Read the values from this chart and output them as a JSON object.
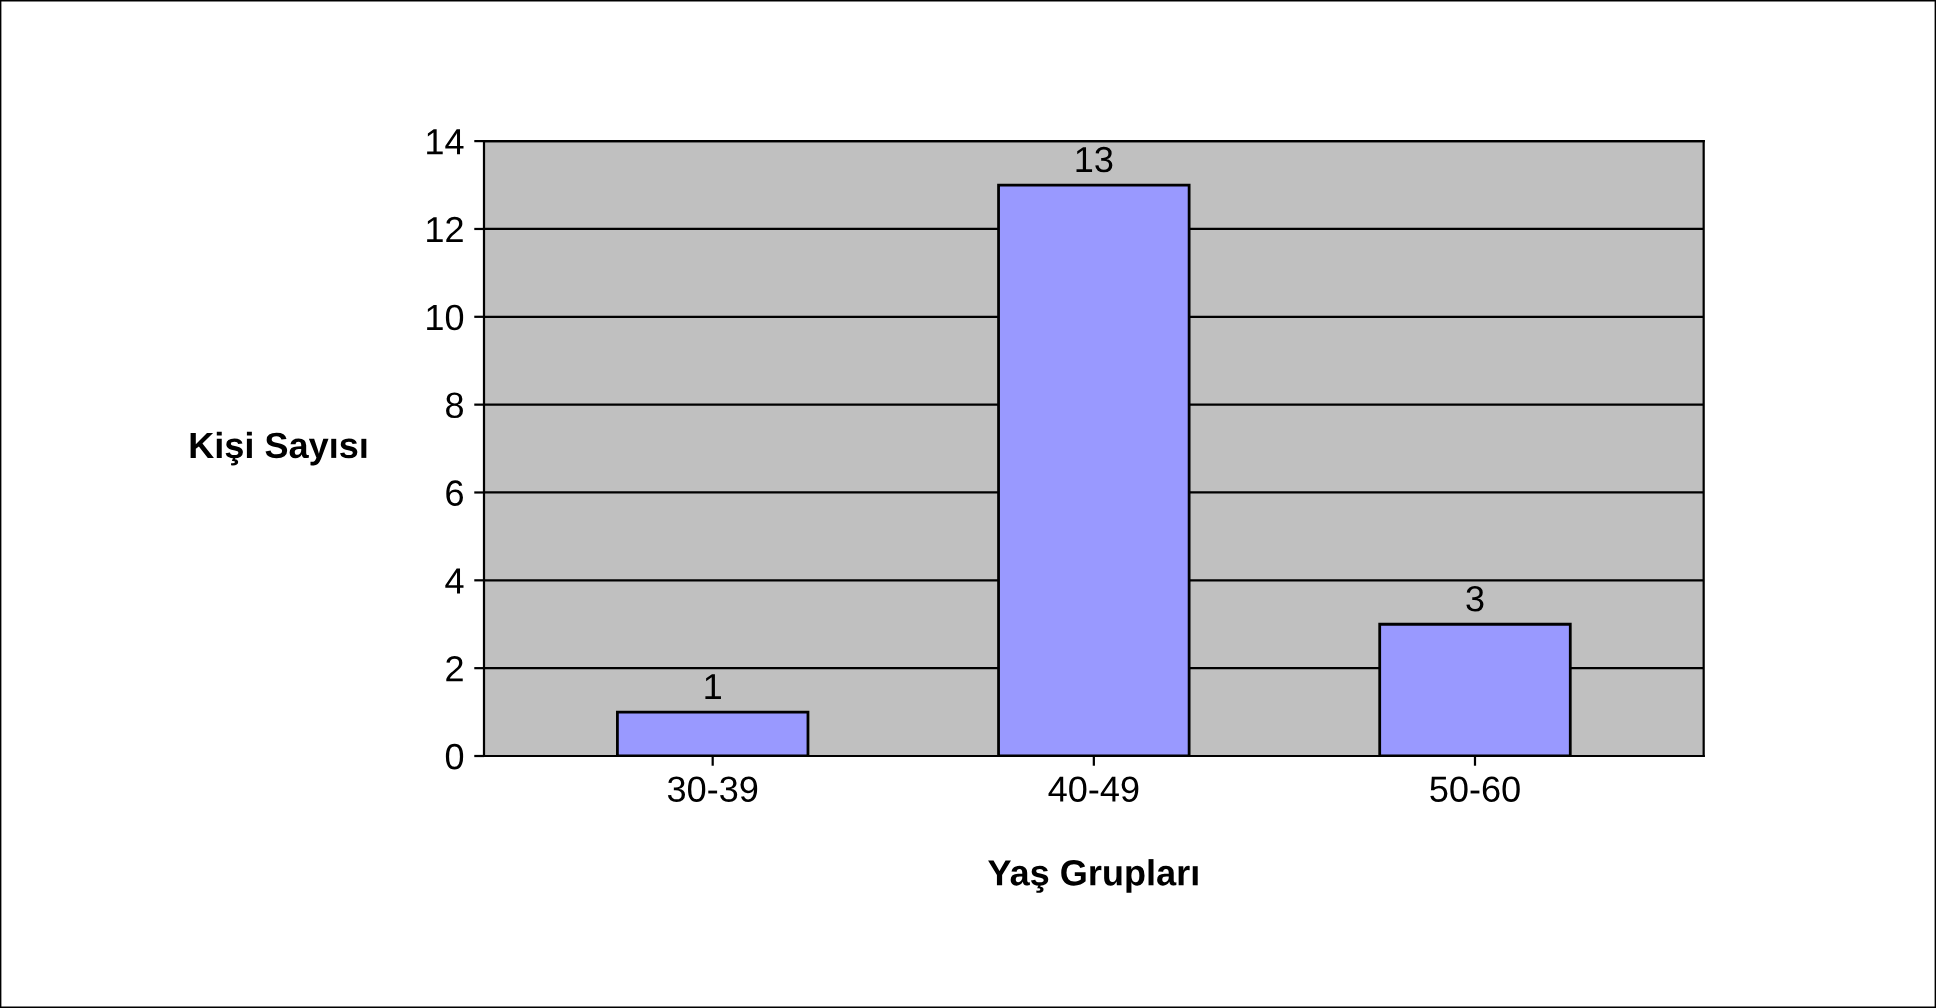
{
  "chart_data": {
    "type": "bar",
    "xlabel": "Yaş Grupları",
    "ylabel": "Kişi Sayısı",
    "categories": [
      "30-39",
      "40-49",
      "50-60"
    ],
    "values": [
      1,
      13,
      3
    ],
    "color": "#9999ff",
    "ylim": [
      0,
      14
    ],
    "yticks": [
      0,
      2,
      4,
      6,
      8,
      10,
      12,
      14
    ],
    "grid": "y",
    "data_labels": true
  }
}
